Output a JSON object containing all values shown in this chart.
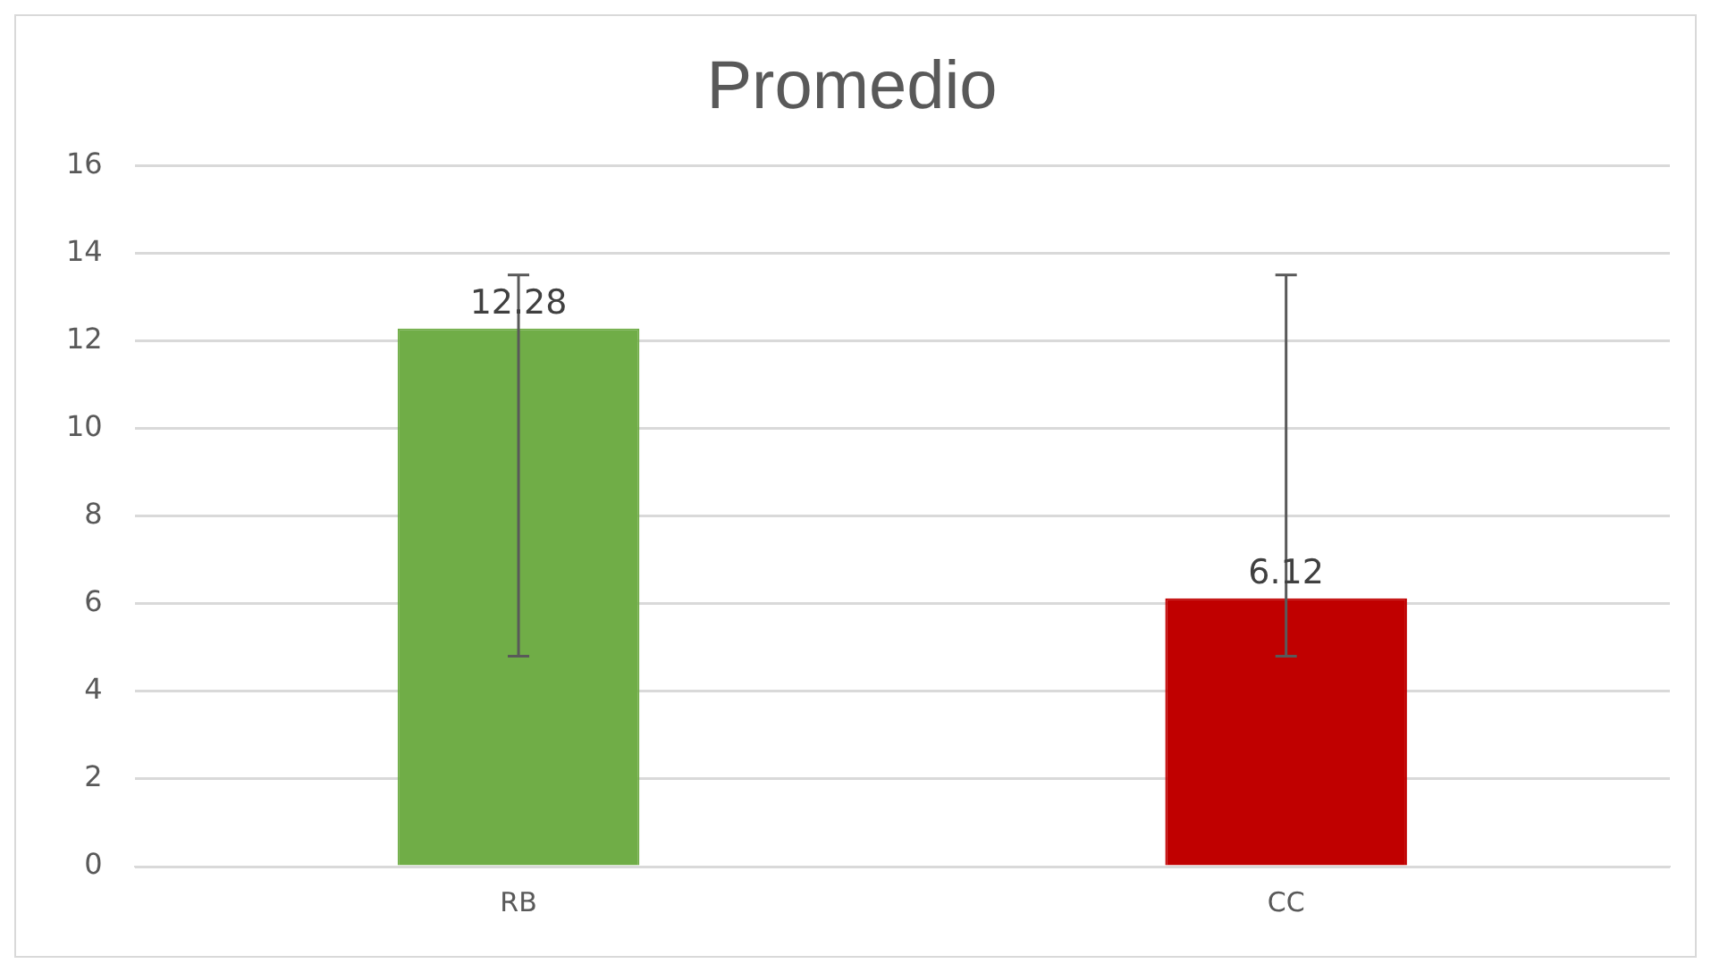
{
  "chart_data": {
    "type": "bar",
    "title": "Promedio",
    "categories": [
      "RB",
      "CC"
    ],
    "values": [
      12.28,
      6.12
    ],
    "colors": [
      "#70ad47",
      "#c00000"
    ],
    "errors": [
      [
        4.8,
        13.5
      ],
      [
        4.8,
        13.5
      ]
    ],
    "data_labels": true,
    "ylim": [
      0,
      16
    ],
    "yticks": [
      0,
      2,
      4,
      6,
      8,
      10,
      12,
      14,
      16
    ],
    "grid": "y",
    "legend": false
  }
}
